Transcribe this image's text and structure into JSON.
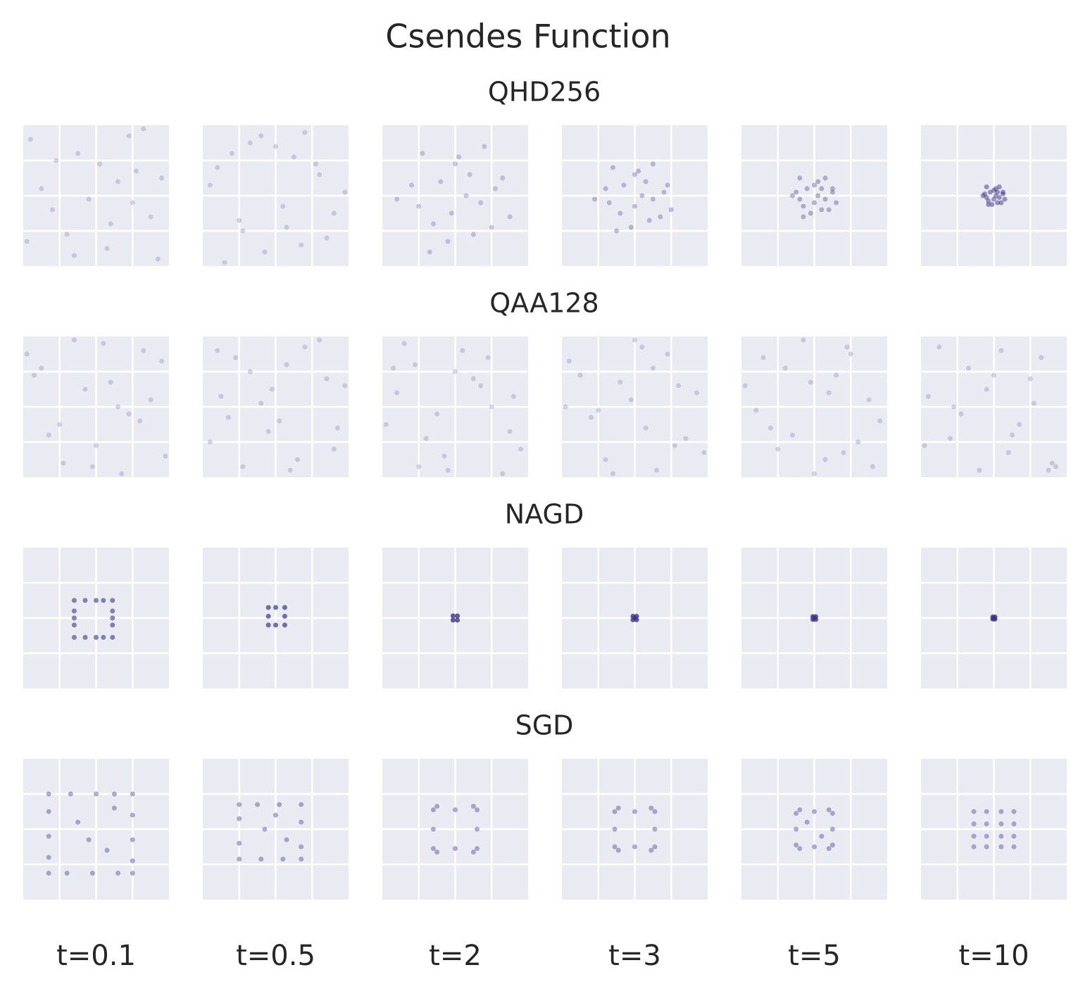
{
  "title": "Csendes Function",
  "row_titles": [
    "QHD256",
    "QAA128",
    "NAGD",
    "SGD"
  ],
  "column_titles": [
    "t=0.1",
    "t=0.5",
    "t=2",
    "t=3",
    "t=5",
    "t=10"
  ],
  "chart_data": [
    {
      "type": "scatter",
      "color": "#3b3687",
      "alpha": 0.2,
      "xlim": [
        -2,
        2
      ],
      "ylim": [
        -2,
        2
      ],
      "xticks": [
        -1,
        0,
        1
      ],
      "yticks": [
        -1,
        0,
        1
      ],
      "grid": true,
      "x": [
        -1.8,
        -1.2,
        -0.5,
        0.3,
        1.1,
        1.7,
        -1.5,
        -0.8,
        0.1,
        0.9,
        1.5,
        -1.9,
        -0.2,
        0.6,
        1.3,
        -1.1,
        0.4,
        1.8,
        -0.6,
        1.0
      ],
      "y": [
        1.6,
        -0.4,
        1.2,
        -1.5,
        0.7,
        -1.8,
        0.2,
        -1.1,
        0.9,
        1.7,
        -0.6,
        -1.3,
        -0.1,
        0.4,
        1.9,
        1.0,
        -0.8,
        0.5,
        -1.7,
        -0.2
      ]
    },
    {
      "type": "scatter",
      "color": "#3b3687",
      "alpha": 0.2,
      "xlim": [
        -2,
        2
      ],
      "ylim": [
        -2,
        2
      ],
      "xticks": [
        -1,
        0,
        1
      ],
      "yticks": [
        -1,
        0,
        1
      ],
      "grid": true,
      "x": [
        1.4,
        -0.7,
        0.2,
        -1.6,
        0.8,
        -0.3,
        1.9,
        -1.0,
        0.5,
        -1.4,
        1.2,
        0.0,
        -0.9,
        1.6,
        -1.8,
        0.7,
        -0.4,
        1.1,
        -1.2,
        0.3
      ],
      "y": [
        -1.2,
        1.5,
        -0.3,
        0.8,
        1.8,
        -1.6,
        0.1,
        -0.7,
        1.1,
        -1.9,
        0.6,
        1.4,
        -1.0,
        -0.5,
        0.3,
        -1.4,
        1.7,
        0.9,
        1.2,
        -0.9
      ]
    },
    {
      "type": "scatter",
      "color": "#3b3687",
      "alpha": 0.25,
      "xlim": [
        -2,
        2
      ],
      "ylim": [
        -2,
        2
      ],
      "xticks": [
        -1,
        0,
        1
      ],
      "yticks": [
        -1,
        0,
        1
      ],
      "grid": true,
      "x": [
        -1.2,
        -0.6,
        0.1,
        0.7,
        1.3,
        -0.9,
        -0.2,
        0.4,
        1.0,
        -1.6,
        0.3,
        -0.4,
        0.8,
        -0.1,
        1.5,
        -0.7,
        0.5,
        0.0,
        -1.0,
        1.1
      ],
      "y": [
        0.3,
        -0.8,
        1.1,
        -0.2,
        0.5,
        1.2,
        -1.3,
        0.6,
        -0.9,
        -0.1,
        0.0,
        0.4,
        1.4,
        -0.5,
        -0.6,
        -1.6,
        -1.1,
        0.9,
        -0.3,
        0.2
      ]
    },
    {
      "type": "scatter",
      "color": "#3b3687",
      "alpha": 0.3,
      "xlim": [
        -2,
        2
      ],
      "ylim": [
        -2,
        2
      ],
      "xticks": [
        -1,
        0,
        1
      ],
      "yticks": [
        -1,
        0,
        1
      ],
      "grid": true,
      "x": [
        -0.8,
        -0.4,
        0.1,
        0.5,
        0.9,
        -0.6,
        -0.1,
        0.3,
        0.7,
        -1.1,
        0.2,
        -0.3,
        0.5,
        0.0,
        1.0,
        -0.5,
        0.4,
        0.0,
        -0.7,
        0.8
      ],
      "y": [
        0.2,
        -0.5,
        0.7,
        -0.1,
        0.3,
        0.8,
        -0.9,
        0.4,
        -0.6,
        -0.1,
        0.0,
        0.3,
        0.9,
        -0.3,
        -0.4,
        -1.0,
        -0.7,
        0.6,
        -0.2,
        0.1
      ]
    },
    {
      "type": "scatter",
      "color": "#3b3687",
      "alpha": 0.35,
      "xlim": [
        -2,
        2
      ],
      "ylim": [
        -2,
        2
      ],
      "xticks": [
        -1,
        0,
        1
      ],
      "yticks": [
        -1,
        0,
        1
      ],
      "grid": true,
      "x": [
        -0.5,
        -0.3,
        0.1,
        0.3,
        0.5,
        -0.4,
        -0.1,
        0.2,
        0.4,
        -0.6,
        0.1,
        -0.2,
        0.3,
        0.0,
        0.6,
        -0.3,
        0.2,
        0.0,
        -0.4,
        0.5
      ],
      "y": [
        0.1,
        -0.3,
        0.4,
        -0.1,
        0.2,
        0.5,
        -0.5,
        0.2,
        -0.4,
        0.0,
        0.0,
        0.2,
        0.5,
        -0.2,
        -0.2,
        -0.6,
        -0.4,
        0.3,
        -0.1,
        0.1
      ]
    },
    {
      "type": "scatter",
      "color": "#3b3687",
      "alpha": 0.5,
      "xlim": [
        -2,
        2
      ],
      "ylim": [
        -2,
        2
      ],
      "xticks": [
        -1,
        0,
        1
      ],
      "yticks": [
        -1,
        0,
        1
      ],
      "grid": true,
      "x": [
        -0.25,
        -0.15,
        0.05,
        0.15,
        0.25,
        -0.2,
        -0.05,
        0.1,
        0.2,
        -0.3,
        0.05,
        -0.1,
        0.15,
        0.0,
        0.3,
        -0.15,
        0.1,
        0.0,
        -0.2,
        0.25
      ],
      "y": [
        0.05,
        -0.15,
        0.2,
        -0.05,
        0.1,
        0.25,
        -0.25,
        0.1,
        -0.2,
        0.0,
        0.0,
        0.1,
        0.25,
        -0.1,
        -0.1,
        -0.25,
        -0.2,
        0.15,
        -0.05,
        0.05
      ]
    },
    {
      "type": "scatter",
      "color": "#3b3687",
      "alpha": 0.2,
      "xlim": [
        -2,
        2
      ],
      "ylim": [
        -2,
        2
      ],
      "xticks": [
        -1,
        0,
        1
      ],
      "yticks": [
        -1,
        0,
        1
      ],
      "grid": true,
      "x": [
        -1.7,
        -0.9,
        0.2,
        1.2,
        1.8,
        -1.3,
        -0.3,
        0.7,
        1.5,
        -1.9,
        0.0,
        -0.6,
        0.9,
        1.9,
        -1.0,
        0.4,
        -1.5,
        1.3,
        -0.1,
        0.6
      ],
      "y": [
        0.9,
        -1.6,
        1.8,
        -0.4,
        1.3,
        -0.8,
        0.5,
        -1.9,
        0.2,
        1.5,
        -1.1,
        1.9,
        -0.2,
        -1.4,
        -0.5,
        0.7,
        1.1,
        1.6,
        -1.7,
        0.0
      ]
    },
    {
      "type": "scatter",
      "color": "#3b3687",
      "alpha": 0.2,
      "xlim": [
        -2,
        2
      ],
      "ylim": [
        -2,
        2
      ],
      "xticks": [
        -1,
        0,
        1
      ],
      "yticks": [
        -1,
        0,
        1
      ],
      "grid": true,
      "x": [
        0.8,
        -1.5,
        1.6,
        -0.2,
        -1.1,
        0.4,
        1.9,
        -0.7,
        0.1,
        -1.8,
        1.2,
        -0.4,
        0.6,
        1.4,
        -1.3,
        -0.9,
        0.3,
        1.7,
        -0.1,
        -1.6
      ],
      "y": [
        1.7,
        0.3,
        -1.2,
        -0.7,
        1.4,
        -1.8,
        0.6,
        1.0,
        -0.4,
        -1.0,
        1.9,
        0.1,
        -1.5,
        0.8,
        -0.3,
        -1.7,
        1.2,
        -0.6,
        0.5,
        1.6
      ]
    },
    {
      "type": "scatter",
      "color": "#3b3687",
      "alpha": 0.2,
      "xlim": [
        -2,
        2
      ],
      "ylim": [
        -2,
        2
      ],
      "xticks": [
        -1,
        0,
        1
      ],
      "yticks": [
        -1,
        0,
        1
      ],
      "grid": true,
      "x": [
        -1.9,
        -1.1,
        -0.3,
        0.5,
        1.3,
        -1.6,
        -0.8,
        0.2,
        1.0,
        1.8,
        -1.4,
        -0.5,
        0.7,
        1.5,
        -1.0,
        0.0,
        0.9,
        -0.2,
        1.6,
        -1.7
      ],
      "y": [
        -0.5,
        1.2,
        -1.4,
        0.8,
        -1.9,
        0.4,
        -0.9,
        1.6,
        0.0,
        -1.2,
        1.8,
        -0.2,
        0.6,
        -0.7,
        -1.7,
        1.0,
        1.4,
        -1.8,
        0.3,
        1.1
      ]
    },
    {
      "type": "scatter",
      "color": "#3b3687",
      "alpha": 0.2,
      "xlim": [
        -2,
        2
      ],
      "ylim": [
        -2,
        2
      ],
      "xticks": [
        -1,
        0,
        1
      ],
      "yticks": [
        -1,
        0,
        1
      ],
      "grid": true,
      "x": [
        1.1,
        -0.4,
        -1.8,
        0.6,
        1.7,
        -1.2,
        0.0,
        1.4,
        -0.8,
        -1.5,
        0.9,
        0.3,
        -0.1,
        1.9,
        -1.0,
        0.5,
        -0.6,
        1.2,
        -1.9,
        0.2
      ],
      "y": [
        -1.1,
        0.7,
        1.3,
        -1.8,
        0.4,
        -0.3,
        1.9,
        -0.9,
        -1.5,
        0.9,
        1.5,
        -0.6,
        0.2,
        -1.3,
        -0.1,
        1.1,
        -1.9,
        0.6,
        0.0,
        1.7
      ]
    },
    {
      "type": "scatter",
      "color": "#3b3687",
      "alpha": 0.2,
      "xlim": [
        -2,
        2
      ],
      "ylim": [
        -2,
        2
      ],
      "xticks": [
        -1,
        0,
        1
      ],
      "yticks": [
        -1,
        0,
        1
      ],
      "grid": true,
      "x": [
        -1.4,
        0.3,
        1.5,
        -0.6,
        0.9,
        -1.9,
        0.0,
        1.8,
        -1.0,
        0.6,
        -0.3,
        1.2,
        -1.6,
        0.4,
        1.6,
        -0.8,
        -1.2,
        0.8,
        -0.1,
        1.0
      ],
      "y": [
        1.4,
        -1.5,
        0.2,
        -0.8,
        1.7,
        0.6,
        -1.9,
        -0.4,
        -1.2,
        0.9,
        1.9,
        -1.0,
        -0.1,
        0.4,
        -1.7,
        1.1,
        -0.6,
        -1.3,
        0.7,
        1.5
      ]
    },
    {
      "type": "scatter",
      "color": "#3b3687",
      "alpha": 0.2,
      "xlim": [
        -2,
        2
      ],
      "ylim": [
        -2,
        2
      ],
      "xticks": [
        -1,
        0,
        1
      ],
      "yticks": [
        -1,
        0,
        1
      ],
      "grid": true,
      "x": [
        -1.8,
        -1.2,
        -0.7,
        -0.2,
        0.4,
        1.0,
        1.6,
        -1.5,
        -0.9,
        0.0,
        0.7,
        1.3,
        -1.9,
        -0.4,
        0.2,
        1.1,
        1.7,
        -1.1,
        0.5,
        1.5
      ],
      "y": [
        0.3,
        -0.9,
        1.1,
        0.5,
        -1.3,
        0.8,
        -1.6,
        1.7,
        -0.2,
        0.9,
        -0.5,
        1.4,
        -1.1,
        -1.8,
        1.6,
        0.1,
        -1.7,
        0.0,
        -0.8,
        -1.8
      ]
    },
    {
      "type": "scatter",
      "color": "#3b3687",
      "alpha": 0.6,
      "xlim": [
        -2,
        2
      ],
      "ylim": [
        -2,
        2
      ],
      "xticks": [
        -1,
        0,
        1
      ],
      "yticks": [
        -1,
        0,
        1
      ],
      "grid": true,
      "x": [
        -0.6,
        -0.6,
        0.45,
        0.45,
        -0.3,
        0.0,
        0.2,
        -0.3,
        0.0,
        0.2,
        -0.6,
        -0.6,
        0.45,
        0.45,
        -0.6,
        0.45
      ],
      "y": [
        0.5,
        -0.55,
        0.5,
        -0.55,
        0.5,
        0.5,
        0.5,
        -0.55,
        -0.55,
        -0.55,
        0.2,
        -0.2,
        0.2,
        -0.2,
        0.0,
        0.0
      ]
    },
    {
      "type": "scatter",
      "color": "#3b3687",
      "alpha": 0.7,
      "xlim": [
        -2,
        2
      ],
      "ylim": [
        -2,
        2
      ],
      "xticks": [
        -1,
        0,
        1
      ],
      "yticks": [
        -1,
        0,
        1
      ],
      "grid": true,
      "x": [
        -0.2,
        0.25,
        -0.2,
        0.25,
        0.0,
        0.0,
        -0.2,
        0.25
      ],
      "y": [
        0.3,
        0.3,
        -0.2,
        -0.2,
        0.3,
        -0.2,
        0.05,
        0.05
      ]
    },
    {
      "type": "scatter",
      "color": "#3b3687",
      "alpha": 0.8,
      "xlim": [
        -2,
        2
      ],
      "ylim": [
        -2,
        2
      ],
      "xticks": [
        -1,
        0,
        1
      ],
      "yticks": [
        -1,
        0,
        1
      ],
      "grid": true,
      "x": [
        -0.06,
        0.06,
        -0.06,
        0.06
      ],
      "y": [
        0.06,
        0.06,
        -0.06,
        -0.06
      ]
    },
    {
      "type": "scatter",
      "color": "#3b3687",
      "alpha": 0.8,
      "xlim": [
        -2,
        2
      ],
      "ylim": [
        -2,
        2
      ],
      "xticks": [
        -1,
        0,
        1
      ],
      "yticks": [
        -1,
        0,
        1
      ],
      "grid": true,
      "x": [
        -0.05,
        0.05,
        -0.05,
        0.05,
        0.0
      ],
      "y": [
        0.05,
        0.05,
        -0.05,
        -0.05,
        0.0
      ]
    },
    {
      "type": "scatter",
      "color": "#3b3687",
      "alpha": 0.8,
      "xlim": [
        -2,
        2
      ],
      "ylim": [
        -2,
        2
      ],
      "xticks": [
        -1,
        0,
        1
      ],
      "yticks": [
        -1,
        0,
        1
      ],
      "grid": true,
      "x": [
        -0.04,
        0.04,
        -0.04,
        0.04,
        0.0
      ],
      "y": [
        0.04,
        0.04,
        -0.04,
        -0.04,
        0.0
      ]
    },
    {
      "type": "scatter",
      "color": "#3b3687",
      "alpha": 0.8,
      "xlim": [
        -2,
        2
      ],
      "ylim": [
        -2,
        2
      ],
      "xticks": [
        -1,
        0,
        1
      ],
      "yticks": [
        -1,
        0,
        1
      ],
      "grid": true,
      "x": [
        -0.03,
        0.03,
        -0.03,
        0.03,
        0.0
      ],
      "y": [
        0.03,
        0.03,
        -0.03,
        -0.03,
        0.0
      ]
    },
    {
      "type": "scatter",
      "color": "#3b3687",
      "alpha": 0.4,
      "xlim": [
        -2,
        2
      ],
      "ylim": [
        -2,
        2
      ],
      "xticks": [
        -1,
        0,
        1
      ],
      "yticks": [
        -1,
        0,
        1
      ],
      "grid": true,
      "x": [
        -1.3,
        1.0,
        -1.3,
        1.0,
        -0.7,
        0.0,
        0.5,
        -0.8,
        -0.1,
        0.6,
        -1.3,
        -1.3,
        -1.3,
        1.0,
        1.0,
        1.0,
        -0.5,
        0.3,
        -0.2,
        0.5
      ],
      "y": [
        1.0,
        1.0,
        -1.25,
        -1.25,
        1.0,
        1.0,
        1.0,
        -1.25,
        -1.25,
        -1.25,
        0.5,
        -0.2,
        -0.8,
        0.4,
        -0.3,
        -0.9,
        0.2,
        -0.6,
        -0.3,
        0.6
      ]
    },
    {
      "type": "scatter",
      "color": "#3b3687",
      "alpha": 0.4,
      "xlim": [
        -2,
        2
      ],
      "ylim": [
        -2,
        2
      ],
      "xticks": [
        -1,
        0,
        1
      ],
      "yticks": [
        -1,
        0,
        1
      ],
      "grid": true,
      "x": [
        -1.0,
        0.7,
        -1.0,
        0.7,
        -0.5,
        0.1,
        -0.4,
        0.2,
        -1.0,
        -1.0,
        0.7,
        0.7,
        -0.3,
        0.3,
        0.0
      ],
      "y": [
        0.7,
        0.7,
        -0.85,
        -0.85,
        0.7,
        0.7,
        -0.85,
        -0.85,
        0.3,
        -0.4,
        0.2,
        -0.5,
        0.0,
        -0.3,
        0.4
      ]
    },
    {
      "type": "scatter",
      "color": "#3b3687",
      "alpha": 0.4,
      "xlim": [
        -2,
        2
      ],
      "ylim": [
        -2,
        2
      ],
      "xticks": [
        -1,
        0,
        1
      ],
      "yticks": [
        -1,
        0,
        1
      ],
      "grid": true,
      "x": [
        -0.6,
        -0.5,
        0.6,
        0.5,
        -0.6,
        -0.5,
        0.6,
        0.5,
        0.0,
        -0.6,
        0.6,
        0.0
      ],
      "y": [
        0.55,
        0.65,
        0.55,
        0.65,
        -0.55,
        -0.65,
        -0.55,
        -0.65,
        0.55,
        0.0,
        0.0,
        -0.55
      ]
    },
    {
      "type": "scatter",
      "color": "#3b3687",
      "alpha": 0.4,
      "xlim": [
        -2,
        2
      ],
      "ylim": [
        -2,
        2
      ],
      "xticks": [
        -1,
        0,
        1
      ],
      "yticks": [
        -1,
        0,
        1
      ],
      "grid": true,
      "x": [
        -0.55,
        -0.45,
        0.55,
        0.45,
        -0.55,
        -0.45,
        0.55,
        0.45,
        0.0,
        -0.55,
        0.55,
        0.0
      ],
      "y": [
        0.5,
        0.6,
        0.5,
        0.6,
        -0.5,
        -0.6,
        -0.5,
        -0.6,
        0.5,
        0.0,
        0.0,
        -0.5
      ]
    },
    {
      "type": "scatter",
      "color": "#3b3687",
      "alpha": 0.4,
      "xlim": [
        -2,
        2
      ],
      "ylim": [
        -2,
        2
      ],
      "xticks": [
        -1,
        0,
        1
      ],
      "yticks": [
        -1,
        0,
        1
      ],
      "grid": true,
      "x": [
        -0.5,
        -0.4,
        0.5,
        0.4,
        -0.5,
        -0.4,
        0.5,
        0.4,
        0.0,
        -0.5,
        0.5,
        0.0,
        -0.2,
        0.2
      ],
      "y": [
        0.45,
        0.55,
        0.45,
        0.55,
        -0.45,
        -0.55,
        -0.45,
        -0.55,
        0.5,
        0.0,
        0.0,
        -0.5,
        0.2,
        -0.2
      ]
    },
    {
      "type": "scatter",
      "color": "#3b3687",
      "alpha": 0.4,
      "xlim": [
        -2,
        2
      ],
      "ylim": [
        -2,
        2
      ],
      "xticks": [
        -1,
        0,
        1
      ],
      "yticks": [
        -1,
        0,
        1
      ],
      "grid": true,
      "x": [
        -0.55,
        -0.2,
        0.2,
        0.55,
        -0.55,
        -0.2,
        0.2,
        0.55,
        -0.55,
        -0.2,
        0.2,
        0.55,
        -0.55,
        -0.2,
        0.2,
        0.55
      ],
      "y": [
        0.5,
        0.5,
        0.5,
        0.5,
        0.15,
        0.15,
        0.15,
        0.15,
        -0.2,
        -0.2,
        -0.2,
        -0.2,
        -0.5,
        -0.5,
        -0.5,
        -0.5
      ]
    }
  ]
}
